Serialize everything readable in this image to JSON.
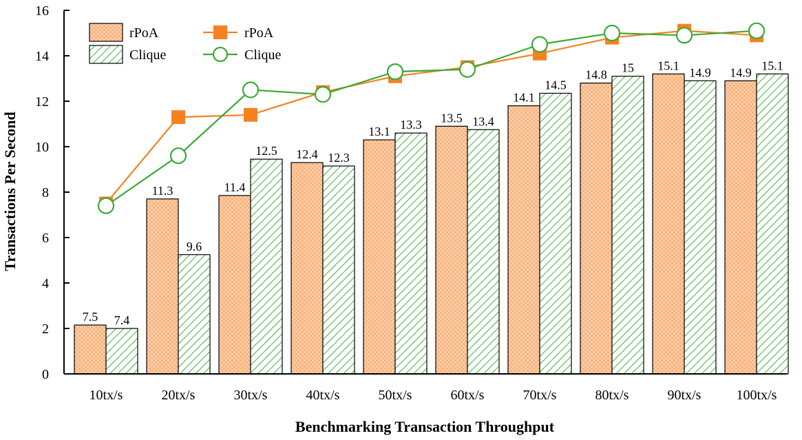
{
  "chart_data": {
    "type": "bar",
    "categories": [
      "10tx/s",
      "20tx/s",
      "30tx/s",
      "40tx/s",
      "50tx/s",
      "60tx/s",
      "70tx/s",
      "80tx/s",
      "90tx/s",
      "100tx/s"
    ],
    "bar_series": [
      {
        "name": "rPoA",
        "values": [
          2.15,
          7.7,
          7.85,
          9.3,
          10.3,
          10.9,
          11.8,
          12.8,
          13.2,
          12.9
        ],
        "labels": [
          "7.5",
          "11.3",
          "11.4",
          "12.4",
          "13.1",
          "13.5",
          "14.1",
          "14.8",
          "15.1",
          "14.9"
        ],
        "color": "#f7b07a"
      },
      {
        "name": "Clique",
        "values": [
          2.0,
          5.25,
          9.45,
          9.15,
          10.6,
          10.75,
          12.35,
          13.1,
          12.9,
          13.2
        ],
        "labels": [
          "7.4",
          "9.6",
          "12.5",
          "12.3",
          "13.3",
          "13.4",
          "14.5",
          "15",
          "14.9",
          "15.1"
        ],
        "color": "#4cb84c"
      }
    ],
    "line_series": [
      {
        "name": "rPoA",
        "values": [
          7.5,
          11.3,
          11.4,
          12.4,
          13.1,
          13.5,
          14.1,
          14.8,
          15.1,
          14.9
        ],
        "color": "#f58220",
        "marker": "square"
      },
      {
        "name": "Clique",
        "values": [
          7.4,
          9.6,
          12.5,
          12.3,
          13.3,
          13.4,
          14.5,
          15.0,
          14.9,
          15.1
        ],
        "color": "#3aaa35",
        "marker": "circle"
      }
    ],
    "title": "",
    "xlabel": "Benchmarking Transaction Throughput",
    "ylabel": "Transactions Per Second",
    "ylim": [
      0,
      16
    ],
    "yticks": [
      "0",
      "2",
      "4",
      "6",
      "8",
      "10",
      "12",
      "14",
      "16"
    ],
    "legend": {
      "placement": "top-left"
    }
  }
}
